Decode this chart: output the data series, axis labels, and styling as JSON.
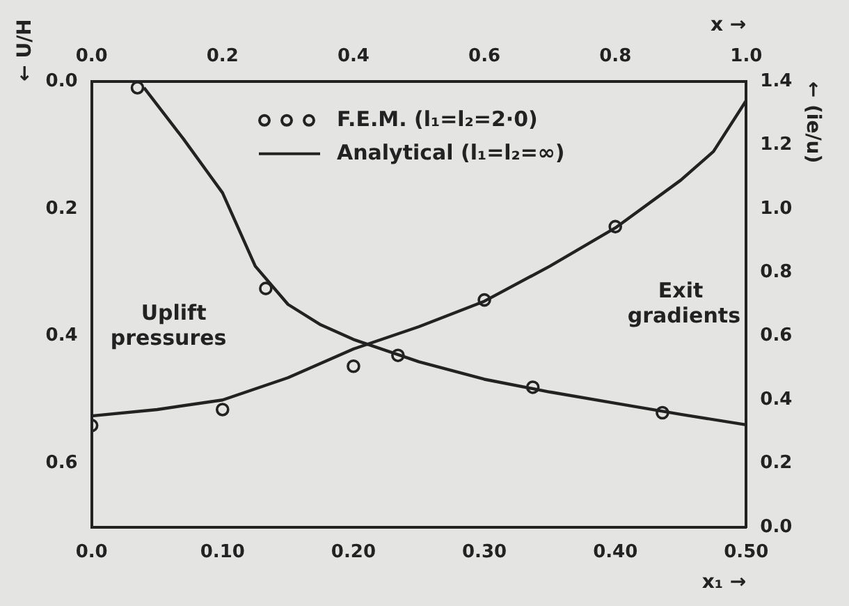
{
  "chart_data": {
    "type": "line",
    "xlabel": "x₁ →",
    "x2label": "x →",
    "ylabel": "← U/H",
    "y2label": "← (ie/u)",
    "xlim": [
      0,
      0.5
    ],
    "xticks": [
      {
        "value": 0,
        "label": "0.0"
      },
      {
        "value": 0.1,
        "label": "0.10"
      },
      {
        "value": 0.2,
        "label": "0.20"
      },
      {
        "value": 0.3,
        "label": "0.30"
      },
      {
        "value": 0.4,
        "label": "0.40"
      },
      {
        "value": 0.5,
        "label": "0.50"
      }
    ],
    "x2lim": [
      0,
      1
    ],
    "x2ticks": [
      {
        "value": 0,
        "label": "0.0"
      },
      {
        "value": 0.2,
        "label": "0.2"
      },
      {
        "value": 0.4,
        "label": "0.4"
      },
      {
        "value": 0.6,
        "label": "0.6"
      },
      {
        "value": 0.8,
        "label": "0.8"
      },
      {
        "value": 1,
        "label": "1.0"
      }
    ],
    "ylim": [
      0.7,
      0
    ],
    "yticks": [
      {
        "value": 0,
        "label": "0.0"
      },
      {
        "value": 0.2,
        "label": "0.2"
      },
      {
        "value": 0.4,
        "label": "0.4"
      },
      {
        "value": 0.6,
        "label": "0.6"
      }
    ],
    "y2lim": [
      0,
      1.4
    ],
    "y2ticks": [
      {
        "value": 0,
        "label": "0.0"
      },
      {
        "value": 0.2,
        "label": "0.2"
      },
      {
        "value": 0.4,
        "label": "0.4"
      },
      {
        "value": 0.6,
        "label": "0.6"
      },
      {
        "value": 0.8,
        "label": "0.8"
      },
      {
        "value": 1,
        "label": "1.0"
      },
      {
        "value": 1.2,
        "label": "1.2"
      },
      {
        "value": 1.4,
        "label": "1.4"
      }
    ],
    "grid": false,
    "legend": "top",
    "series": [
      {
        "name": "F.E.M. (l₁=l₂=2·0)",
        "type": "scatter",
        "marker": "circle",
        "color": "#222222",
        "x": [
          0,
          0.1,
          0.2,
          0.3,
          0.4
        ],
        "values": [
          0.54,
          0.515,
          0.447,
          0.343,
          0.228
        ]
      },
      {
        "name": "Analytical (l₁=l₂=∞)",
        "type": "line",
        "marker": "none",
        "color": "#222222",
        "x": [
          0,
          0.05,
          0.1,
          0.15,
          0.2,
          0.25,
          0.3,
          0.35,
          0.4,
          0.45,
          0.475,
          0.5
        ],
        "values": [
          0.525,
          0.515,
          0.5,
          0.465,
          0.42,
          0.385,
          0.345,
          0.29,
          0.23,
          0.155,
          0.11,
          0.03
        ]
      },
      {
        "type": "scatter",
        "marker": "circle",
        "color": "#222222",
        "axis": "y2",
        "x": [
          0.035,
          0.133,
          0.234,
          0.337,
          0.436
        ],
        "values": [
          1.38,
          0.75,
          0.54,
          0.44,
          0.36
        ]
      },
      {
        "type": "line",
        "marker": "none",
        "color": "#222222",
        "axis": "y2",
        "x": [
          0.04,
          0.07,
          0.1,
          0.125,
          0.15,
          0.175,
          0.2,
          0.25,
          0.3,
          0.35,
          0.4,
          0.45,
          0.5
        ],
        "values": [
          1.38,
          1.22,
          1.05,
          0.82,
          0.7,
          0.636,
          0.59,
          0.52,
          0.465,
          0.425,
          0.39,
          0.355,
          0.322
        ]
      }
    ],
    "annotations": [
      "Uplift pressures",
      "Exit gradients"
    ]
  }
}
